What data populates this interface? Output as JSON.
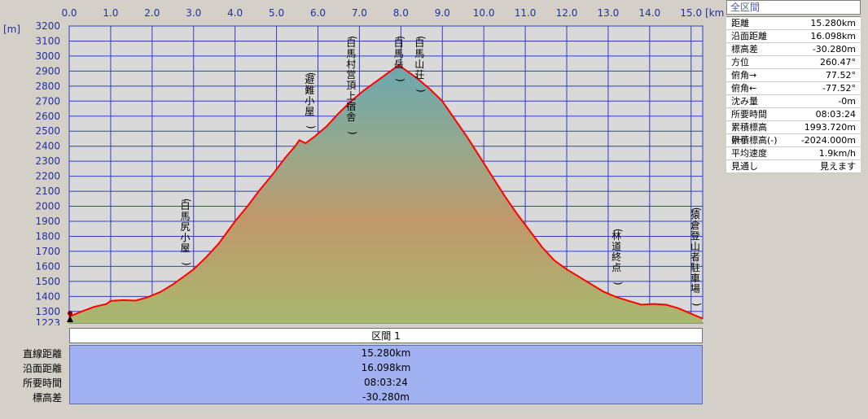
{
  "chart_data": {
    "type": "area",
    "xunit": "[km]",
    "yunit": "[m]",
    "xlim": [
      0,
      15.28
    ],
    "ylim": [
      1223,
      3200
    ],
    "x_ticks": [
      "0.0",
      "1.0",
      "2.0",
      "3.0",
      "4.0",
      "5.0",
      "6.0",
      "7.0",
      "8.0",
      "9.0",
      "10.0",
      "11.0",
      "12.0",
      "13.0",
      "14.0",
      "15.0"
    ],
    "y_ticks": [
      "3200",
      "3100",
      "3000",
      "2900",
      "2800",
      "2700",
      "2600",
      "2500",
      "2400",
      "2300",
      "2200",
      "2100",
      "2000",
      "1900",
      "1800",
      "1700",
      "1600",
      "1500",
      "1400",
      "1300",
      "1223"
    ],
    "profile": [
      [
        0.0,
        1265
      ],
      [
        0.3,
        1300
      ],
      [
        0.6,
        1330
      ],
      [
        0.9,
        1350
      ],
      [
        1.0,
        1370
      ],
      [
        1.3,
        1375
      ],
      [
        1.6,
        1372
      ],
      [
        1.9,
        1395
      ],
      [
        2.2,
        1430
      ],
      [
        2.5,
        1480
      ],
      [
        2.8,
        1540
      ],
      [
        3.0,
        1580
      ],
      [
        3.3,
        1660
      ],
      [
        3.6,
        1750
      ],
      [
        4.0,
        1900
      ],
      [
        4.3,
        2000
      ],
      [
        4.6,
        2110
      ],
      [
        4.9,
        2210
      ],
      [
        5.2,
        2320
      ],
      [
        5.45,
        2400
      ],
      [
        5.55,
        2440
      ],
      [
        5.7,
        2420
      ],
      [
        5.9,
        2460
      ],
      [
        6.2,
        2530
      ],
      [
        6.5,
        2620
      ],
      [
        6.8,
        2700
      ],
      [
        7.1,
        2770
      ],
      [
        7.4,
        2830
      ],
      [
        7.7,
        2890
      ],
      [
        7.95,
        2940
      ],
      [
        8.1,
        2910
      ],
      [
        8.4,
        2850
      ],
      [
        8.7,
        2780
      ],
      [
        9.0,
        2700
      ],
      [
        9.3,
        2580
      ],
      [
        9.6,
        2460
      ],
      [
        9.9,
        2330
      ],
      [
        10.2,
        2200
      ],
      [
        10.5,
        2070
      ],
      [
        10.8,
        1950
      ],
      [
        11.1,
        1840
      ],
      [
        11.4,
        1730
      ],
      [
        11.7,
        1640
      ],
      [
        12.0,
        1580
      ],
      [
        12.3,
        1530
      ],
      [
        12.6,
        1480
      ],
      [
        12.9,
        1430
      ],
      [
        13.2,
        1395
      ],
      [
        13.5,
        1370
      ],
      [
        13.8,
        1345
      ],
      [
        14.1,
        1350
      ],
      [
        14.4,
        1345
      ],
      [
        14.7,
        1320
      ],
      [
        15.0,
        1285
      ],
      [
        15.28,
        1252
      ]
    ],
    "annotations": [
      {
        "x": 2.8,
        "y": 1570,
        "label": "(白馬尻小屋)"
      },
      {
        "x": 5.8,
        "y": 2480,
        "label": "(避難小屋)"
      },
      {
        "x": 6.8,
        "y": 2720,
        "label": "(白馬村営頂上宿舎)"
      },
      {
        "x": 7.95,
        "y": 2940,
        "label": "(白馬岳)"
      },
      {
        "x": 8.45,
        "y": 2850,
        "label": "(白馬山荘)"
      },
      {
        "x": 13.2,
        "y": 1440,
        "label": "(林道終点)"
      },
      {
        "x": 15.1,
        "y": 1300,
        "label": "(猿倉登山者駐車場)"
      }
    ],
    "colors": {
      "line": "#ff0000",
      "grid": "#3040c0",
      "plot_bg": "#d9d9d9",
      "fill_top": "#6aa8b0",
      "fill_mid": "#c0986a",
      "fill_bottom": "#a8b870",
      "shadow": "#f5f5f5"
    }
  },
  "stats": {
    "title": "全区間",
    "rows": [
      {
        "label": "距離",
        "value": "15.280km"
      },
      {
        "label": "沿面距離",
        "value": "16.098km"
      },
      {
        "label": "標高差",
        "value": "-30.280m"
      },
      {
        "label": "方位",
        "value": "260.47°"
      },
      {
        "label": "俯角→",
        "value": "77.52°"
      },
      {
        "label": "俯角←",
        "value": "-77.52°"
      },
      {
        "label": "沈み量",
        "value": "-0m"
      },
      {
        "label": "所要時間",
        "value": "08:03:24"
      },
      {
        "label": "累積標高(+)",
        "value": "1993.720m"
      },
      {
        "label": "累積標高(-)",
        "value": "-2024.000m"
      },
      {
        "label": "平均速度",
        "value": "1.9km/h"
      },
      {
        "label": "見通し",
        "value": "見えます"
      }
    ]
  },
  "section": {
    "header": "区間 1",
    "labels": [
      "直線距離",
      "沿面距離",
      "所要時間",
      "標高差"
    ],
    "values": [
      "15.280km",
      "16.098km",
      "08:03:24",
      "-30.280m"
    ]
  }
}
